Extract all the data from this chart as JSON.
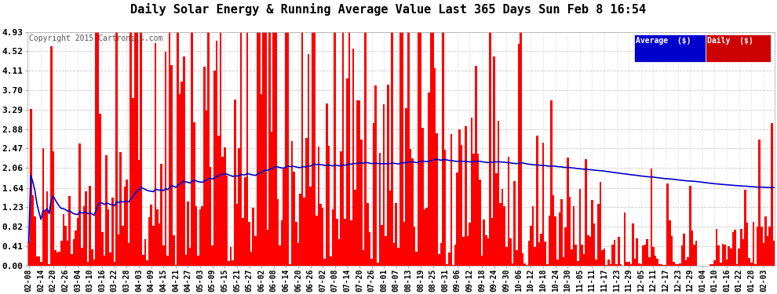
{
  "title": "Daily Solar Energy & Running Average Value Last 365 Days Sun Feb 8 16:54",
  "copyright": "Copyright 2015 Cartronics.com",
  "bg_color": "#ffffff",
  "plot_bg_color": "#ffffff",
  "bar_color": "#ff0000",
  "avg_line_color": "#0000cc",
  "grid_color": "#bbbbbb",
  "title_color": "#000000",
  "yticks": [
    0.0,
    0.41,
    0.82,
    1.23,
    1.64,
    2.06,
    2.47,
    2.88,
    3.29,
    3.7,
    4.11,
    4.52,
    4.93
  ],
  "ylim": [
    0.0,
    4.93
  ],
  "start_date": "2014-02-08",
  "n_days": 366,
  "legend_avg_bg": "#0000cc",
  "legend_daily_bg": "#cc0000",
  "xtick_labels": [
    "02-08",
    "02-14",
    "02-20",
    "02-26",
    "03-04",
    "03-10",
    "03-16",
    "03-22",
    "03-28",
    "04-03",
    "04-09",
    "04-15",
    "04-21",
    "04-27",
    "05-03",
    "05-09",
    "05-15",
    "05-21",
    "05-27",
    "06-02",
    "06-08",
    "06-14",
    "06-20",
    "06-26",
    "07-02",
    "07-08",
    "07-14",
    "07-20",
    "07-26",
    "08-01",
    "08-07",
    "08-13",
    "08-19",
    "08-25",
    "08-31",
    "09-06",
    "09-12",
    "09-18",
    "09-24",
    "09-30",
    "10-06",
    "10-12",
    "10-18",
    "10-24",
    "10-30",
    "11-05",
    "11-11",
    "11-17",
    "11-23",
    "11-29",
    "12-05",
    "12-11",
    "12-17",
    "12-23",
    "12-29",
    "01-04",
    "01-10",
    "01-16",
    "01-22",
    "01-28",
    "02-03"
  ]
}
